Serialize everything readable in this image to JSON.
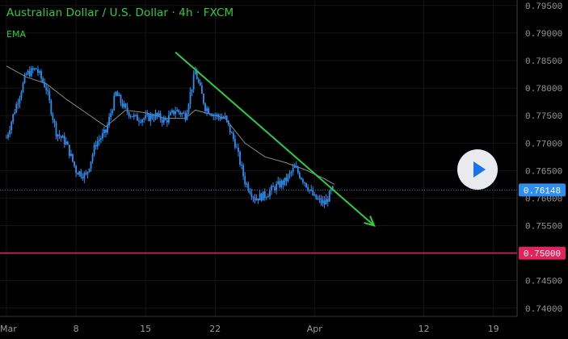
{
  "header": {
    "symbol_title": "Australian Dollar / U.S. Dollar · 4h · FXCM",
    "indicator_label": "EMA"
  },
  "colors": {
    "background": "#000000",
    "text_green": "#2ecc40",
    "candles": "#2e8ef0",
    "trendline": "#2ecc40",
    "ema_line": "#8a8a8a",
    "support_line": "#e0245e",
    "price_badge": "#2e8ef0",
    "support_badge": "#e0245e"
  },
  "controls": {
    "play_icon": "play-icon"
  },
  "chart_data": {
    "type": "line",
    "title": "Australian Dollar / U.S. Dollar · 4h · FXCM",
    "indicator": "EMA",
    "x_ticks": [
      "Mar",
      "8",
      "15",
      "22",
      "Apr",
      "12",
      "19"
    ],
    "y_ticks": [
      "0.79500",
      "0.79000",
      "0.78500",
      "0.78000",
      "0.77500",
      "0.77000",
      "0.76500",
      "0.76000",
      "0.75500",
      "0.75000",
      "0.74500",
      "0.74000"
    ],
    "ylim": [
      0.7385,
      0.796
    ],
    "current_price": "0.76148",
    "support_level": "0.75000",
    "series": [
      {
        "kind": "price",
        "x": [
          "Mar 1",
          "Mar 2",
          "Mar 3",
          "Mar 4",
          "Mar 5",
          "Mar 6",
          "Mar 7",
          "Mar 8",
          "Mar 9",
          "Mar 10",
          "Mar 11",
          "Mar 12",
          "Mar 13",
          "Mar 14",
          "Mar 15",
          "Mar 16",
          "Mar 17",
          "Mar 18",
          "Mar 19",
          "Mar 20",
          "Mar 21",
          "Mar 22",
          "Mar 23",
          "Mar 24",
          "Mar 25",
          "Mar 26",
          "Mar 27",
          "Mar 28",
          "Mar 29",
          "Mar 30",
          "Mar 31",
          "Apr 1",
          "Apr 2",
          "Apr 3"
        ],
        "values": [
          0.771,
          0.777,
          0.7825,
          0.7835,
          0.78,
          0.772,
          0.77,
          0.765,
          0.764,
          0.77,
          0.772,
          0.779,
          0.776,
          0.7745,
          0.7745,
          0.775,
          0.774,
          0.776,
          0.775,
          0.783,
          0.7765,
          0.775,
          0.7745,
          0.77,
          0.763,
          0.76,
          0.7605,
          0.762,
          0.763,
          0.7655,
          0.763,
          0.76,
          0.759,
          0.762
        ]
      },
      {
        "kind": "ema",
        "x": [
          "Mar 1",
          "Mar 3",
          "Mar 5",
          "Mar 7",
          "Mar 9",
          "Mar 11",
          "Mar 13",
          "Mar 15",
          "Mar 17",
          "Mar 19",
          "Mar 20",
          "Mar 21",
          "Mar 23",
          "Mar 25",
          "Mar 27",
          "Mar 29",
          "Mar 31",
          "Apr 2",
          "Apr 3"
        ],
        "values": [
          0.784,
          0.782,
          0.7808,
          0.778,
          0.7755,
          0.773,
          0.776,
          0.7755,
          0.7745,
          0.7745,
          0.776,
          0.7755,
          0.7745,
          0.77,
          0.7675,
          0.7665,
          0.7652,
          0.7635,
          0.7625
        ]
      },
      {
        "kind": "trendline",
        "x": [
          "Mar 18",
          "Apr 7"
        ],
        "values": [
          0.7865,
          0.755
        ]
      },
      {
        "kind": "horizontal",
        "x": [
          "Mar 1",
          "Apr 22"
        ],
        "values": [
          0.75,
          0.75
        ]
      }
    ]
  }
}
